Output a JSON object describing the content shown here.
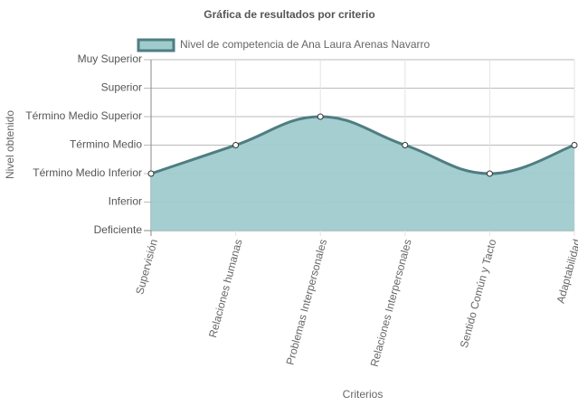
{
  "chart_data": {
    "type": "line",
    "title": "Gráfica de resultados por criterio",
    "x_label": "Criterios",
    "y_label": "Nivel obtenido",
    "categories": [
      "Supervisión",
      "Relaciones humanas",
      "Problemas Interpersonales",
      "Relaciones Interpersonales",
      "Sentido Común y Tacto",
      "Adaptabilidad"
    ],
    "series": [
      {
        "name": "Nivel de competencia de Ana Laura Arenas Navarro",
        "color": "#4f7d82",
        "fill_color": "#9fcbcd",
        "values": [
          2,
          3,
          4,
          3,
          2,
          3
        ]
      }
    ],
    "ylim": [
      0,
      6
    ],
    "yticks": [
      {
        "value": 0,
        "label": "Deficiente"
      },
      {
        "value": 1,
        "label": "Inferior"
      },
      {
        "value": 2,
        "label": "Término Medio Inferior"
      },
      {
        "value": 3,
        "label": "Término Medio"
      },
      {
        "value": 4,
        "label": "Término Medio Superior"
      },
      {
        "value": 5,
        "label": "Superior"
      },
      {
        "value": 6,
        "label": "Muy Superior"
      }
    ],
    "grid": true,
    "fill": true,
    "smooth": true,
    "legend": "top"
  }
}
